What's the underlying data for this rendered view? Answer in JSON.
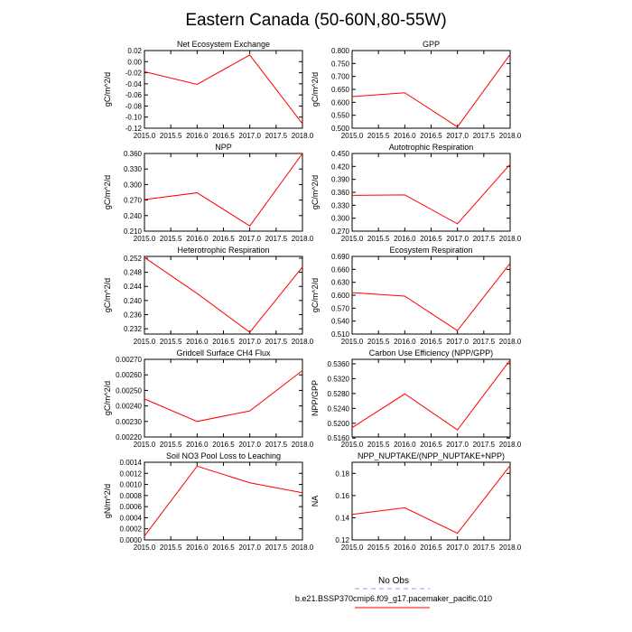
{
  "title": "Eastern Canada (50-60N,80-55W)",
  "legend": {
    "obs_label": "No Obs",
    "obs_color": "#9999ff",
    "case_label": "b.e21.BSSP370cmip6.f09_g17.pacemaker_pacific.010",
    "case_color": "#ff0000"
  },
  "chart_data": [
    {
      "type": "line",
      "title": "Net Ecosystem Exchange",
      "ylabel": "gC/m^2/d",
      "x": [
        2015.0,
        2016.0,
        2017.0,
        2018.0
      ],
      "xlim": [
        2015.0,
        2018.0
      ],
      "xticks": [
        "2015.0",
        "2015.5",
        "2016.0",
        "2016.5",
        "2017.0",
        "2017.5",
        "2018.0"
      ],
      "ylim": [
        -0.12,
        0.02
      ],
      "yticks": [
        "0.02",
        "0.00",
        "-0.02",
        "-0.04",
        "-0.06",
        "-0.08",
        "-0.10",
        "-0.12"
      ],
      "series": [
        {
          "values": [
            -0.018,
            -0.041,
            0.012,
            -0.112
          ],
          "color": "#ff0000"
        }
      ]
    },
    {
      "type": "line",
      "title": "GPP",
      "ylabel": "gC/m^2/d",
      "x": [
        2015.0,
        2016.0,
        2017.0,
        2018.0
      ],
      "xlim": [
        2015.0,
        2018.0
      ],
      "xticks": [
        "2015.0",
        "2015.5",
        "2016.0",
        "2016.5",
        "2017.0",
        "2017.5",
        "2018.0"
      ],
      "ylim": [
        0.5,
        0.8
      ],
      "yticks": [
        "0.800",
        "0.750",
        "0.700",
        "0.650",
        "0.600",
        "0.550",
        "0.500"
      ],
      "series": [
        {
          "values": [
            0.622,
            0.637,
            0.505,
            0.785
          ],
          "color": "#ff0000"
        }
      ]
    },
    {
      "type": "line",
      "title": "NPP",
      "ylabel": "gC/m^2/d",
      "x": [
        2015.0,
        2016.0,
        2017.0,
        2018.0
      ],
      "xlim": [
        2015.0,
        2018.0
      ],
      "xticks": [
        "2015.0",
        "2015.5",
        "2016.0",
        "2016.5",
        "2017.0",
        "2017.5",
        "2018.0"
      ],
      "ylim": [
        0.21,
        0.36
      ],
      "yticks": [
        "0.360",
        "0.330",
        "0.300",
        "0.270",
        "0.240",
        "0.210"
      ],
      "series": [
        {
          "values": [
            0.271,
            0.284,
            0.22,
            0.36
          ],
          "color": "#ff0000"
        }
      ]
    },
    {
      "type": "line",
      "title": "Autotrophic Respiration",
      "ylabel": "gC/m^2/d",
      "x": [
        2015.0,
        2016.0,
        2017.0,
        2018.0
      ],
      "xlim": [
        2015.0,
        2018.0
      ],
      "xticks": [
        "2015.0",
        "2015.5",
        "2016.0",
        "2016.5",
        "2017.0",
        "2017.5",
        "2018.0"
      ],
      "ylim": [
        0.27,
        0.45
      ],
      "yticks": [
        "0.450",
        "0.420",
        "0.390",
        "0.360",
        "0.330",
        "0.300",
        "0.270"
      ],
      "series": [
        {
          "values": [
            0.353,
            0.354,
            0.287,
            0.425
          ],
          "color": "#ff0000"
        }
      ]
    },
    {
      "type": "line",
      "title": "Heterotrophic Respiration",
      "ylabel": "gC/m^2/d",
      "x": [
        2015.0,
        2016.0,
        2017.0,
        2018.0
      ],
      "xlim": [
        2015.0,
        2018.0
      ],
      "xticks": [
        "2015.0",
        "2015.5",
        "2016.0",
        "2016.5",
        "2017.0",
        "2017.5",
        "2018.0"
      ],
      "ylim": [
        0.2305,
        0.2525
      ],
      "yticks": [
        "0.252",
        "0.248",
        "0.244",
        "0.240",
        "0.236",
        "0.232"
      ],
      "series": [
        {
          "values": [
            0.2522,
            0.242,
            0.231,
            0.2495
          ],
          "color": "#ff0000"
        }
      ]
    },
    {
      "type": "line",
      "title": "Ecosystem Respiration",
      "ylabel": "gC/m^2/d",
      "x": [
        2015.0,
        2016.0,
        2017.0,
        2018.0
      ],
      "xlim": [
        2015.0,
        2018.0
      ],
      "xticks": [
        "2015.0",
        "2015.5",
        "2016.0",
        "2016.5",
        "2017.0",
        "2017.5",
        "2018.0"
      ],
      "ylim": [
        0.51,
        0.69
      ],
      "yticks": [
        "0.690",
        "0.660",
        "0.630",
        "0.600",
        "0.570",
        "0.540",
        "0.510"
      ],
      "series": [
        {
          "values": [
            0.606,
            0.598,
            0.518,
            0.674
          ],
          "color": "#ff0000"
        }
      ]
    },
    {
      "type": "line",
      "title": "Gridcell Surface CH4 Flux",
      "ylabel": "gC/m^2/d",
      "x": [
        2015.0,
        2016.0,
        2017.0,
        2018.0
      ],
      "xlim": [
        2015.0,
        2018.0
      ],
      "xticks": [
        "2015.0",
        "2015.5",
        "2016.0",
        "2016.5",
        "2017.0",
        "2017.5",
        "2018.0"
      ],
      "ylim": [
        0.0022,
        0.0027
      ],
      "yticks": [
        "0.00270",
        "0.00260",
        "0.00250",
        "0.00240",
        "0.00230",
        "0.00220"
      ],
      "series": [
        {
          "values": [
            0.002445,
            0.0023,
            0.002368,
            0.002628
          ],
          "color": "#ff0000"
        }
      ]
    },
    {
      "type": "line",
      "title": "Carbon Use Efficiency (NPP/GPP)",
      "ylabel": "NPP/GPP",
      "x": [
        2015.0,
        2016.0,
        2017.0,
        2018.0
      ],
      "xlim": [
        2015.0,
        2018.0
      ],
      "xticks": [
        "2015.0",
        "2015.5",
        "2016.0",
        "2016.5",
        "2017.0",
        "2017.5",
        "2018.0"
      ],
      "ylim": [
        0.5163,
        0.5372
      ],
      "yticks": [
        "0.5360",
        "0.5320",
        "0.5280",
        "0.5240",
        "0.5200",
        "0.5160"
      ],
      "series": [
        {
          "values": [
            0.5188,
            0.5279,
            0.5182,
            0.537
          ],
          "color": "#ff0000"
        }
      ]
    },
    {
      "type": "line",
      "title": "Soil NO3 Pool Loss to Leaching",
      "ylabel": "gN/m^2/d",
      "x": [
        2015.0,
        2016.0,
        2017.0,
        2018.0
      ],
      "xlim": [
        2015.0,
        2018.0
      ],
      "xticks": [
        "2015.0",
        "2015.5",
        "2016.0",
        "2016.5",
        "2017.0",
        "2017.5",
        "2018.0"
      ],
      "ylim": [
        0.0,
        0.0014
      ],
      "yticks": [
        "0.0014",
        "0.0012",
        "0.0010",
        "0.0008",
        "0.0006",
        "0.0004",
        "0.0002",
        "0.0000"
      ],
      "series": [
        {
          "values": [
            7e-05,
            0.00133,
            0.00103,
            0.00085
          ],
          "color": "#ff0000"
        }
      ]
    },
    {
      "type": "line",
      "title": "NPP_NUPTAKE/(NPP_NUPTAKE+NPP)",
      "ylabel": "NA",
      "x": [
        2015.0,
        2016.0,
        2017.0,
        2018.0
      ],
      "xlim": [
        2015.0,
        2018.0
      ],
      "xticks": [
        "2015.0",
        "2015.5",
        "2016.0",
        "2016.5",
        "2017.0",
        "2017.5",
        "2018.0"
      ],
      "ylim": [
        0.12,
        0.19
      ],
      "yticks": [
        "0.18",
        "0.16",
        "0.14",
        "0.12"
      ],
      "yticks_values": [
        0.18,
        0.16,
        0.14,
        0.12
      ],
      "series": [
        {
          "values": [
            0.143,
            0.149,
            0.126,
            0.187
          ],
          "color": "#ff0000"
        }
      ]
    }
  ]
}
